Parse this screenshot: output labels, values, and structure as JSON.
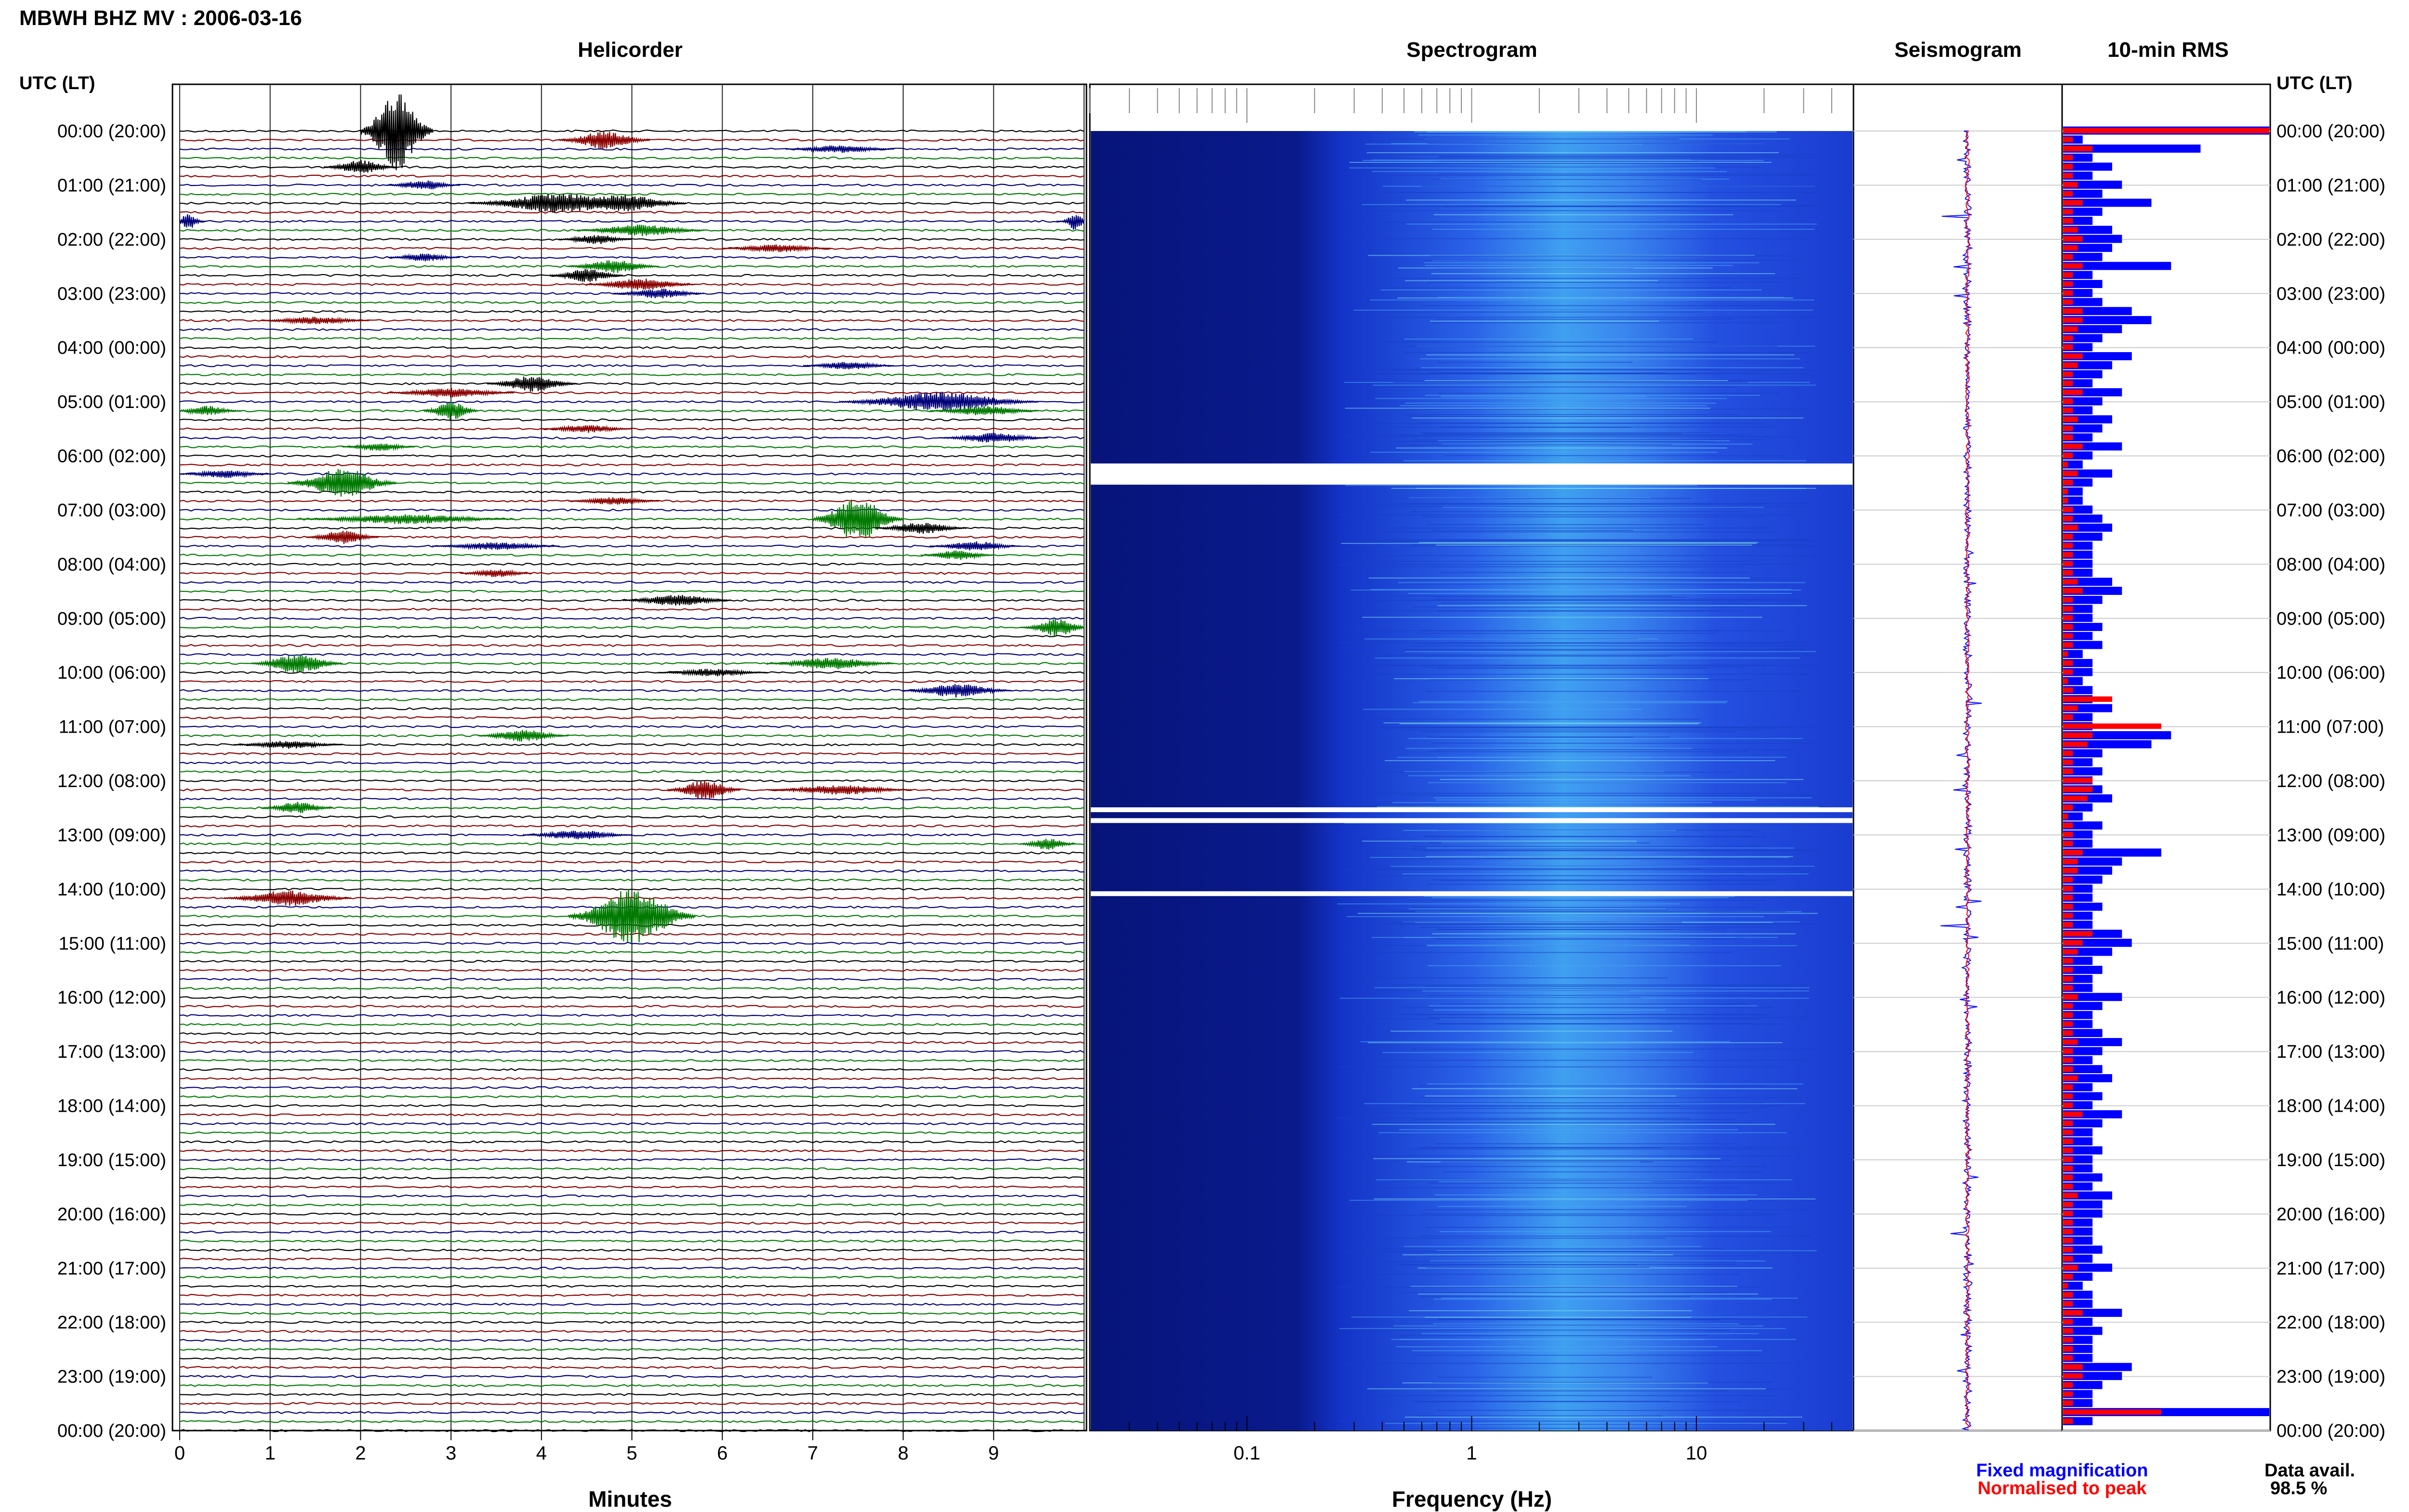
{
  "header": {
    "title": "MBWH BHZ MV : 2006-03-16"
  },
  "panels": {
    "helicorder": "Helicorder",
    "spectrogram": "Spectrogram",
    "seismogram": "Seismogram",
    "rms": "10-min RMS"
  },
  "axes": {
    "utc_label": "UTC (LT)",
    "minutes_label": "Minutes",
    "frequency_label": "Frequency (Hz)"
  },
  "legend": {
    "fixed": "Fixed magnification",
    "normalised": "Normalised to peak"
  },
  "availability": {
    "label": "Data avail.",
    "value": "98.5 %"
  },
  "colors": {
    "black": "#000000",
    "red": "#8b0000",
    "green": "#007a00",
    "blue": "#00007a",
    "fixed": "#0000ff",
    "normalised": "#ff0000",
    "spec_dark": "#0a1a8c"
  },
  "chart_data": {
    "type": "table",
    "time_labels": [
      "00:00 (20:00)",
      "01:00 (21:00)",
      "02:00 (22:00)",
      "03:00 (23:00)",
      "04:00 (00:00)",
      "05:00 (01:00)",
      "06:00 (02:00)",
      "07:00 (03:00)",
      "08:00 (04:00)",
      "09:00 (05:00)",
      "10:00 (06:00)",
      "11:00 (07:00)",
      "12:00 (08:00)",
      "13:00 (09:00)",
      "14:00 (10:00)",
      "15:00 (11:00)",
      "16:00 (12:00)",
      "17:00 (13:00)",
      "18:00 (14:00)",
      "19:00 (15:00)",
      "20:00 (16:00)",
      "21:00 (17:00)",
      "22:00 (18:00)",
      "23:00 (19:00)",
      "00:00 (20:00)"
    ],
    "minute_ticks": [
      "0",
      "1",
      "2",
      "3",
      "4",
      "5",
      "6",
      "7",
      "8",
      "9"
    ],
    "minute_range": [
      0,
      10
    ],
    "frequency_ticks": [
      "0.1",
      "1",
      "10"
    ],
    "frequency_range": [
      0.02,
      50
    ],
    "spectrogram_gaps_hours": [
      6.3,
      12.65,
      12.85,
      14.2
    ],
    "rms_fixed": [
      2.1,
      0.2,
      1.4,
      0.3,
      0.5,
      0.3,
      0.6,
      0.4,
      0.9,
      0.4,
      0.3,
      0.5,
      0.6,
      0.5,
      0.4,
      1.1,
      0.3,
      0.4,
      0.3,
      0.4,
      0.7,
      0.9,
      0.6,
      0.4,
      0.3,
      0.7,
      0.5,
      0.4,
      0.3,
      0.6,
      0.4,
      0.3,
      0.5,
      0.4,
      0.3,
      0.6,
      0.3,
      0.2,
      0.5,
      0.3,
      0.2,
      0.2,
      0.3,
      0.4,
      0.5,
      0.4,
      0.3,
      0.3,
      0.3,
      0.3,
      0.5,
      0.6,
      0.4,
      0.3,
      0.3,
      0.4,
      0.3,
      0.4,
      0.2,
      0.3,
      0.3,
      0.2,
      0.3,
      0.3,
      0.5,
      0.3,
      0.3,
      1.1,
      0.9,
      0.4,
      0.3,
      0.4,
      0.3,
      0.4,
      0.5,
      0.3,
      0.2,
      0.4,
      0.3,
      0.3,
      1.0,
      0.6,
      0.5,
      0.4,
      0.3,
      0.3,
      0.4,
      0.3,
      0.3,
      0.6,
      0.7,
      0.5,
      0.3,
      0.4,
      0.3,
      0.3,
      0.6,
      0.4,
      0.3,
      0.3,
      0.4,
      0.6,
      0.4,
      0.3,
      0.4,
      0.5,
      0.3,
      0.4,
      0.3,
      0.6,
      0.4,
      0.3,
      0.3,
      0.4,
      0.3,
      0.3,
      0.4,
      0.3,
      0.5,
      0.4,
      0.4,
      0.3,
      0.3,
      0.3,
      0.4,
      0.3,
      0.5,
      0.3,
      0.2,
      0.3,
      0.3,
      0.6,
      0.3,
      0.4,
      0.3,
      0.3,
      0.3,
      0.7,
      0.6,
      0.4,
      0.3,
      0.3,
      2.1,
      0.3
    ],
    "rms_normalised": [
      2.1,
      0.1,
      0.3,
      0.1,
      0.1,
      0.1,
      0.15,
      0.1,
      0.2,
      0.1,
      0.1,
      0.15,
      0.2,
      0.15,
      0.1,
      0.2,
      0.1,
      0.1,
      0.1,
      0.1,
      0.2,
      0.2,
      0.15,
      0.1,
      0.1,
      0.2,
      0.15,
      0.1,
      0.1,
      0.2,
      0.1,
      0.1,
      0.15,
      0.1,
      0.1,
      0.2,
      0.1,
      0.05,
      0.15,
      0.1,
      0.05,
      0.05,
      0.1,
      0.1,
      0.15,
      0.1,
      0.1,
      0.1,
      0.1,
      0.1,
      0.15,
      0.2,
      0.1,
      0.1,
      0.1,
      0.1,
      0.1,
      0.1,
      0.05,
      0.1,
      0.1,
      0.05,
      0.1,
      0.5,
      0.15,
      0.1,
      1.0,
      0.3,
      0.25,
      0.1,
      0.1,
      0.1,
      0.3,
      0.3,
      0.25,
      0.1,
      0.05,
      0.1,
      0.1,
      0.1,
      0.2,
      0.15,
      0.15,
      0.1,
      0.1,
      0.1,
      0.1,
      0.1,
      0.1,
      0.3,
      0.2,
      0.15,
      0.1,
      0.1,
      0.1,
      0.1,
      0.15,
      0.1,
      0.1,
      0.1,
      0.1,
      0.15,
      0.1,
      0.1,
      0.1,
      0.15,
      0.1,
      0.1,
      0.1,
      0.2,
      0.1,
      0.1,
      0.1,
      0.1,
      0.1,
      0.1,
      0.1,
      0.1,
      0.15,
      0.1,
      0.1,
      0.1,
      0.1,
      0.1,
      0.1,
      0.1,
      0.15,
      0.1,
      0.05,
      0.1,
      0.1,
      0.2,
      0.1,
      0.1,
      0.1,
      0.1,
      0.1,
      0.2,
      0.2,
      0.1,
      0.1,
      0.1,
      1.0,
      0.1
    ],
    "events": [
      {
        "row": 0,
        "minute": 2.4,
        "amp": 4.0,
        "width": 0.4
      },
      {
        "row": 1,
        "minute": 4.7,
        "amp": 0.9,
        "width": 0.5
      },
      {
        "row": 2,
        "minute": 7.3,
        "amp": 0.4,
        "width": 0.6
      },
      {
        "row": 4,
        "minute": 2.0,
        "amp": 0.7,
        "width": 0.4
      },
      {
        "row": 6,
        "minute": 2.7,
        "amp": 0.5,
        "width": 0.4
      },
      {
        "row": 8,
        "minute": 4.2,
        "amp": 1.0,
        "width": 1.0
      },
      {
        "row": 8,
        "minute": 4.9,
        "amp": 0.9,
        "width": 0.7
      },
      {
        "row": 10,
        "minute": 0.1,
        "amp": 0.8,
        "width": 0.2
      },
      {
        "row": 10,
        "minute": 9.9,
        "amp": 0.9,
        "width": 0.2
      },
      {
        "row": 11,
        "minute": 5.1,
        "amp": 0.6,
        "width": 0.7
      },
      {
        "row": 12,
        "minute": 4.6,
        "amp": 0.5,
        "width": 0.4
      },
      {
        "row": 13,
        "minute": 6.6,
        "amp": 0.4,
        "width": 0.6
      },
      {
        "row": 14,
        "minute": 2.7,
        "amp": 0.4,
        "width": 0.4
      },
      {
        "row": 15,
        "minute": 4.8,
        "amp": 0.7,
        "width": 0.5
      },
      {
        "row": 16,
        "minute": 4.5,
        "amp": 0.7,
        "width": 0.4
      },
      {
        "row": 17,
        "minute": 5.1,
        "amp": 0.6,
        "width": 0.6
      },
      {
        "row": 18,
        "minute": 5.3,
        "amp": 0.5,
        "width": 0.5
      },
      {
        "row": 21,
        "minute": 1.5,
        "amp": 0.4,
        "width": 0.6
      },
      {
        "row": 26,
        "minute": 7.4,
        "amp": 0.4,
        "width": 0.5
      },
      {
        "row": 28,
        "minute": 3.9,
        "amp": 0.8,
        "width": 0.5
      },
      {
        "row": 29,
        "minute": 3.0,
        "amp": 0.5,
        "width": 0.7
      },
      {
        "row": 30,
        "minute": 8.4,
        "amp": 1.0,
        "width": 1.1
      },
      {
        "row": 31,
        "minute": 0.3,
        "amp": 0.5,
        "width": 0.4
      },
      {
        "row": 31,
        "minute": 3.0,
        "amp": 1.0,
        "width": 0.3
      },
      {
        "row": 31,
        "minute": 8.9,
        "amp": 0.5,
        "width": 0.6
      },
      {
        "row": 33,
        "minute": 4.5,
        "amp": 0.4,
        "width": 0.5
      },
      {
        "row": 34,
        "minute": 9.0,
        "amp": 0.5,
        "width": 0.6
      },
      {
        "row": 35,
        "minute": 2.2,
        "amp": 0.4,
        "width": 0.4
      },
      {
        "row": 38,
        "minute": 0.5,
        "amp": 0.4,
        "width": 0.5
      },
      {
        "row": 39,
        "minute": 1.8,
        "amp": 1.5,
        "width": 0.6
      },
      {
        "row": 41,
        "minute": 4.8,
        "amp": 0.4,
        "width": 0.5
      },
      {
        "row": 43,
        "minute": 7.5,
        "amp": 2.2,
        "width": 0.5
      },
      {
        "row": 43,
        "minute": 2.5,
        "amp": 0.5,
        "width": 1.2
      },
      {
        "row": 44,
        "minute": 8.2,
        "amp": 0.6,
        "width": 0.5
      },
      {
        "row": 45,
        "minute": 1.8,
        "amp": 0.7,
        "width": 0.4
      },
      {
        "row": 46,
        "minute": 3.5,
        "amp": 0.4,
        "width": 0.7
      },
      {
        "row": 46,
        "minute": 8.8,
        "amp": 0.5,
        "width": 0.5
      },
      {
        "row": 47,
        "minute": 8.6,
        "amp": 0.5,
        "width": 0.4
      },
      {
        "row": 49,
        "minute": 3.5,
        "amp": 0.4,
        "width": 0.4
      },
      {
        "row": 52,
        "minute": 5.5,
        "amp": 0.6,
        "width": 0.6
      },
      {
        "row": 55,
        "minute": 9.7,
        "amp": 0.9,
        "width": 0.4
      },
      {
        "row": 59,
        "minute": 1.3,
        "amp": 1.0,
        "width": 0.5
      },
      {
        "row": 59,
        "minute": 7.2,
        "amp": 0.6,
        "width": 0.7
      },
      {
        "row": 60,
        "minute": 5.9,
        "amp": 0.4,
        "width": 0.6
      },
      {
        "row": 62,
        "minute": 8.6,
        "amp": 0.7,
        "width": 0.6
      },
      {
        "row": 67,
        "minute": 3.8,
        "amp": 0.6,
        "width": 0.5
      },
      {
        "row": 68,
        "minute": 1.2,
        "amp": 0.4,
        "width": 0.6
      },
      {
        "row": 73,
        "minute": 5.8,
        "amp": 1.0,
        "width": 0.4
      },
      {
        "row": 73,
        "minute": 7.3,
        "amp": 0.5,
        "width": 0.8
      },
      {
        "row": 75,
        "minute": 1.3,
        "amp": 0.6,
        "width": 0.4
      },
      {
        "row": 78,
        "minute": 4.4,
        "amp": 0.5,
        "width": 0.6
      },
      {
        "row": 79,
        "minute": 9.6,
        "amp": 0.6,
        "width": 0.3
      },
      {
        "row": 85,
        "minute": 1.2,
        "amp": 0.8,
        "width": 0.7
      },
      {
        "row": 87,
        "minute": 5.0,
        "amp": 2.8,
        "width": 0.7
      }
    ]
  }
}
